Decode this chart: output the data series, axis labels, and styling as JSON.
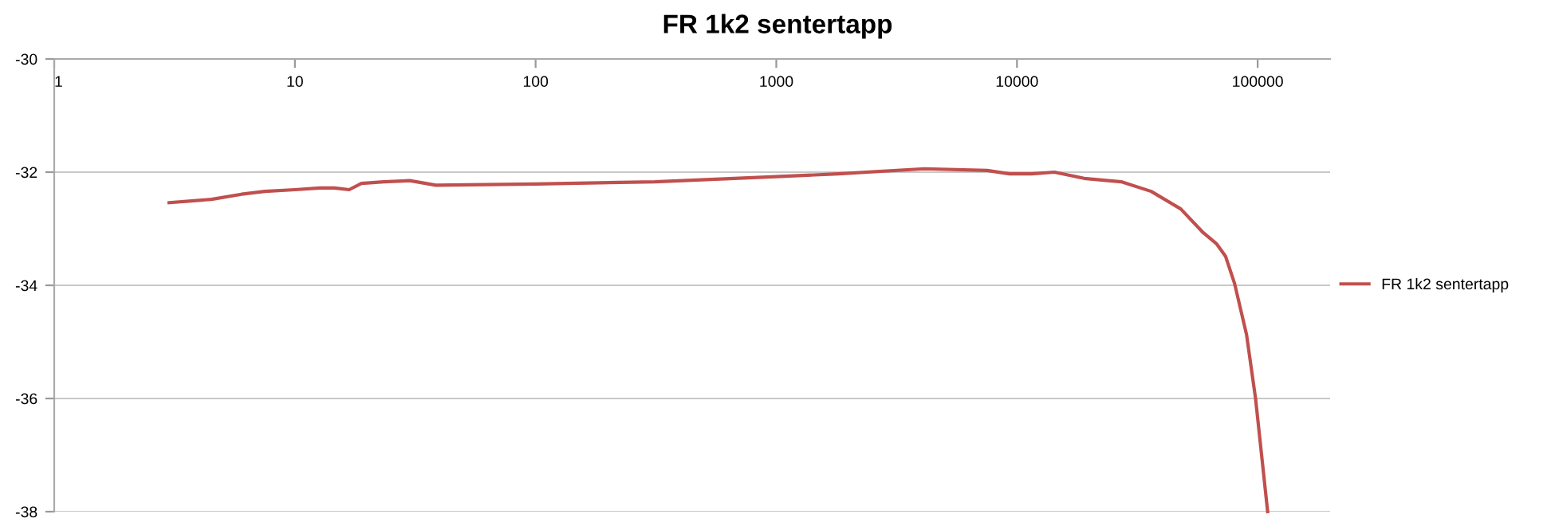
{
  "chart_data": {
    "type": "line",
    "title": "FR 1k2 sentertapp",
    "log": "x",
    "xlim": [
      1,
      200000
    ],
    "xticks": [
      1,
      10,
      100,
      1000,
      10000,
      100000
    ],
    "ylim": [
      -38,
      -30
    ],
    "yticks": [
      -38,
      -36,
      -34,
      -32,
      -30
    ],
    "grid": "y",
    "legend": "right",
    "marker": "none",
    "line_style": "solid",
    "series": [
      {
        "name": "FR 1k2 sentertapp",
        "color": "#c0504d",
        "x": [
          3.0,
          4.5,
          6.0,
          7.5,
          10,
          12.7,
          14.6,
          16.8,
          18.9,
          23.4,
          30,
          38.5,
          100,
          313,
          1000,
          1806,
          4130,
          7520,
          9310,
          11500,
          14300,
          19000,
          27100,
          36100,
          47900,
          59400,
          67600,
          73600,
          80200,
          89900,
          98000,
          110000
        ],
        "values": [
          -32.54,
          -32.48,
          -32.39,
          -32.34,
          -32.31,
          -32.28,
          -32.28,
          -32.31,
          -32.2,
          -32.17,
          -32.15,
          -32.23,
          -32.21,
          -32.17,
          -32.08,
          -32.03,
          -31.94,
          -31.97,
          -32.03,
          -32.03,
          -32.0,
          -32.11,
          -32.17,
          -32.34,
          -32.65,
          -33.07,
          -33.27,
          -33.49,
          -33.97,
          -34.87,
          -36.0,
          -38.0
        ]
      }
    ]
  }
}
